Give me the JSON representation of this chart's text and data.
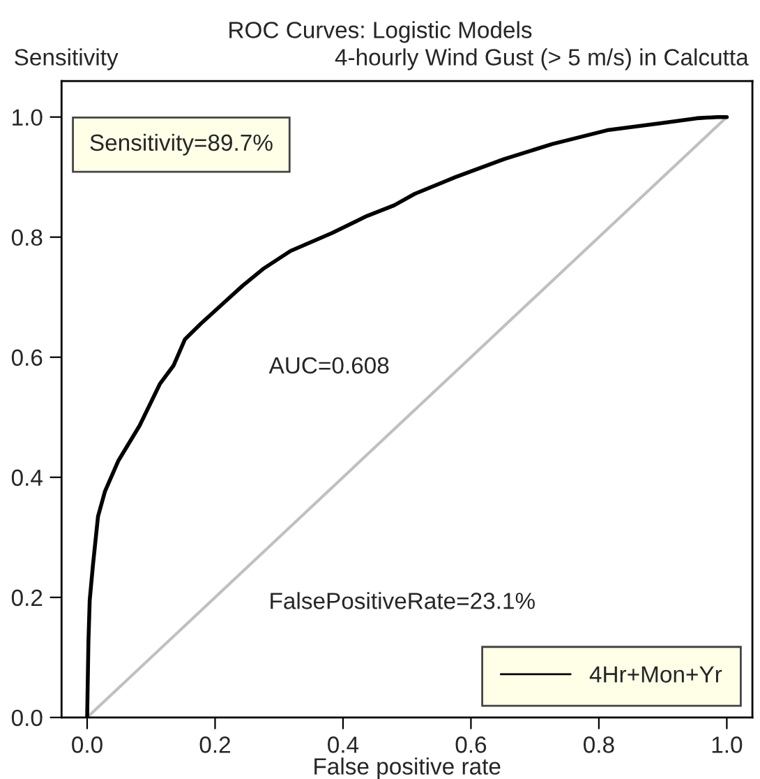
{
  "chart_data": {
    "type": "line",
    "title": "ROC Curves: Logistic Models",
    "subtitle": "4-hourly Wind Gust (> 5 m/s) in Calcutta",
    "xlabel": "False positive rate",
    "ylabel": "Sensitivity",
    "annotations": [
      "Sensitivity=89.7%",
      "AUC=0.608",
      "FalsePositiveRate=23.1%"
    ],
    "series": [
      {
        "name": "4Hr+Mon+Yr",
        "color": "#000000",
        "x": [
          0,
          0.002,
          0.004,
          0.009,
          0.017,
          0.028,
          0.049,
          0.082,
          0.114,
          0.135,
          0.153,
          0.178,
          0.211,
          0.243,
          0.275,
          0.318,
          0.383,
          0.437,
          0.48,
          0.512,
          0.576,
          0.652,
          0.727,
          0.813,
          0.899,
          0.953,
          0.985,
          1
        ],
        "values": [
          0,
          0.126,
          0.195,
          0.253,
          0.335,
          0.377,
          0.428,
          0.486,
          0.556,
          0.586,
          0.63,
          0.656,
          0.688,
          0.719,
          0.747,
          0.777,
          0.807,
          0.835,
          0.853,
          0.872,
          0.9,
          0.93,
          0.955,
          0.978,
          0.99,
          0.998,
          1,
          1
        ]
      },
      {
        "color": "#c0c0c0",
        "x": [
          0,
          1
        ],
        "values": [
          0,
          1
        ]
      }
    ],
    "xlim": [
      -0.04,
      1.04
    ],
    "ylim": [
      0,
      1.06
    ],
    "xticks": [
      {
        "value": 0,
        "label": "0.0"
      },
      {
        "value": 0.2,
        "label": "0.2"
      },
      {
        "value": 0.4,
        "label": "0.4"
      },
      {
        "value": 0.6,
        "label": "0.6"
      },
      {
        "value": 0.8,
        "label": "0.8"
      },
      {
        "value": 1,
        "label": "1.0"
      }
    ],
    "yticks": [
      {
        "value": 0,
        "label": "0.0"
      },
      {
        "value": 0.2,
        "label": "0.2"
      },
      {
        "value": 0.4,
        "label": "0.4"
      },
      {
        "value": 0.6,
        "label": "0.6"
      },
      {
        "value": 0.8,
        "label": "0.8"
      },
      {
        "value": 1,
        "label": "1.0"
      }
    ],
    "legend": "bottom right"
  }
}
